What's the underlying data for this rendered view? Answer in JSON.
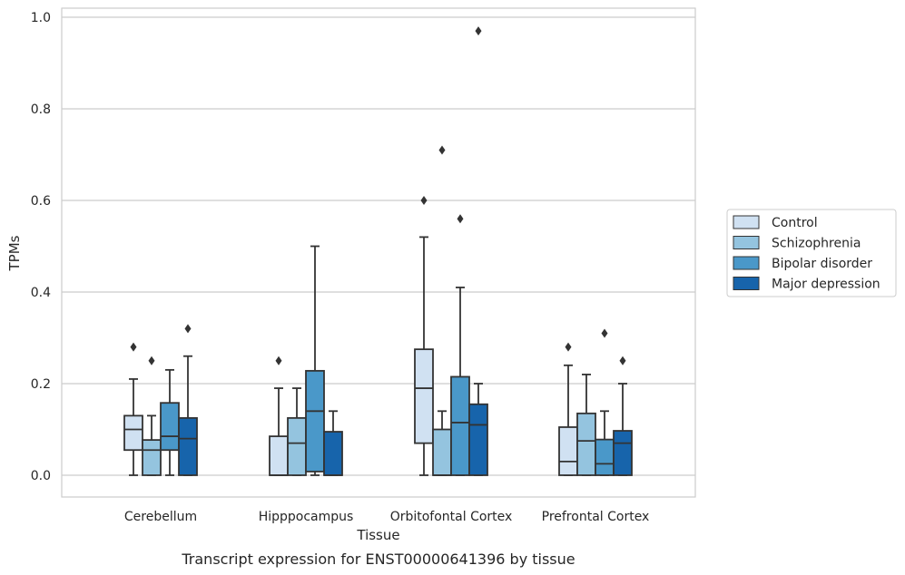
{
  "chart_data": {
    "type": "box",
    "title": "",
    "caption": "Transcript expression for ENST00000641396 by tissue",
    "xlabel": "Tissue",
    "ylabel": "TPMs",
    "ylim": [
      -0.045,
      1.02
    ],
    "yticks": [
      0.0,
      0.2,
      0.4,
      0.6,
      0.8,
      1.0
    ],
    "ytick_labels": [
      "0.0",
      "0.2",
      "0.4",
      "0.6",
      "0.8",
      "1.0"
    ],
    "grid": "horizontal",
    "legend_position": "right",
    "categories": [
      "Cerebellum",
      "Hipppocampus",
      "Orbitofontal Cortex",
      "Prefrontal Cortex"
    ],
    "series": [
      {
        "name": "Control",
        "color": "#d0e1f2",
        "boxes": [
          {
            "whislo": 0.0,
            "q1": 0.055,
            "median": 0.1,
            "q3": 0.13,
            "whishi": 0.21,
            "fliers": [
              0.28
            ]
          },
          {
            "whislo": 0.0,
            "q1": 0.0,
            "median": 0.0,
            "q3": 0.085,
            "whishi": 0.19,
            "fliers": [
              0.25
            ]
          },
          {
            "whislo": 0.0,
            "q1": 0.07,
            "median": 0.19,
            "q3": 0.275,
            "whishi": 0.52,
            "fliers": [
              0.6
            ]
          },
          {
            "whislo": 0.0,
            "q1": 0.0,
            "median": 0.03,
            "q3": 0.105,
            "whishi": 0.24,
            "fliers": [
              0.28
            ]
          }
        ]
      },
      {
        "name": "Schizophrenia",
        "color": "#94c4df",
        "boxes": [
          {
            "whislo": 0.0,
            "q1": 0.0,
            "median": 0.055,
            "q3": 0.077,
            "whishi": 0.13,
            "fliers": [
              0.25
            ]
          },
          {
            "whislo": 0.0,
            "q1": 0.0,
            "median": 0.07,
            "q3": 0.125,
            "whishi": 0.19,
            "fliers": []
          },
          {
            "whislo": 0.0,
            "q1": 0.0,
            "median": 0.0,
            "q3": 0.1,
            "whishi": 0.14,
            "fliers": [
              0.71
            ]
          },
          {
            "whislo": 0.0,
            "q1": 0.0,
            "median": 0.075,
            "q3": 0.135,
            "whishi": 0.22,
            "fliers": []
          }
        ]
      },
      {
        "name": "Bipolar disorder",
        "color": "#4a98c9",
        "boxes": [
          {
            "whislo": 0.0,
            "q1": 0.055,
            "median": 0.085,
            "q3": 0.158,
            "whishi": 0.23,
            "fliers": []
          },
          {
            "whislo": 0.0,
            "q1": 0.008,
            "median": 0.14,
            "q3": 0.228,
            "whishi": 0.5,
            "fliers": []
          },
          {
            "whislo": 0.0,
            "q1": 0.0,
            "median": 0.115,
            "q3": 0.215,
            "whishi": 0.41,
            "fliers": [
              0.56
            ]
          },
          {
            "whislo": 0.0,
            "q1": 0.0,
            "median": 0.025,
            "q3": 0.078,
            "whishi": 0.14,
            "fliers": [
              0.31
            ]
          }
        ]
      },
      {
        "name": "Major depression",
        "color": "#1764ab",
        "boxes": [
          {
            "whislo": 0.0,
            "q1": 0.0,
            "median": 0.08,
            "q3": 0.125,
            "whishi": 0.26,
            "fliers": [
              0.32
            ]
          },
          {
            "whislo": 0.0,
            "q1": 0.0,
            "median": 0.0,
            "q3": 0.095,
            "whishi": 0.14,
            "fliers": []
          },
          {
            "whislo": 0.0,
            "q1": 0.0,
            "median": 0.11,
            "q3": 0.155,
            "whishi": 0.2,
            "fliers": [
              0.97
            ]
          },
          {
            "whislo": 0.0,
            "q1": 0.0,
            "median": 0.07,
            "q3": 0.097,
            "whishi": 0.2,
            "fliers": [
              0.25
            ]
          }
        ]
      }
    ]
  },
  "colors": {
    "box_edge": "#333333",
    "grid": "#cccccc",
    "axes_edge": "#cccccc",
    "text": "#262626"
  }
}
